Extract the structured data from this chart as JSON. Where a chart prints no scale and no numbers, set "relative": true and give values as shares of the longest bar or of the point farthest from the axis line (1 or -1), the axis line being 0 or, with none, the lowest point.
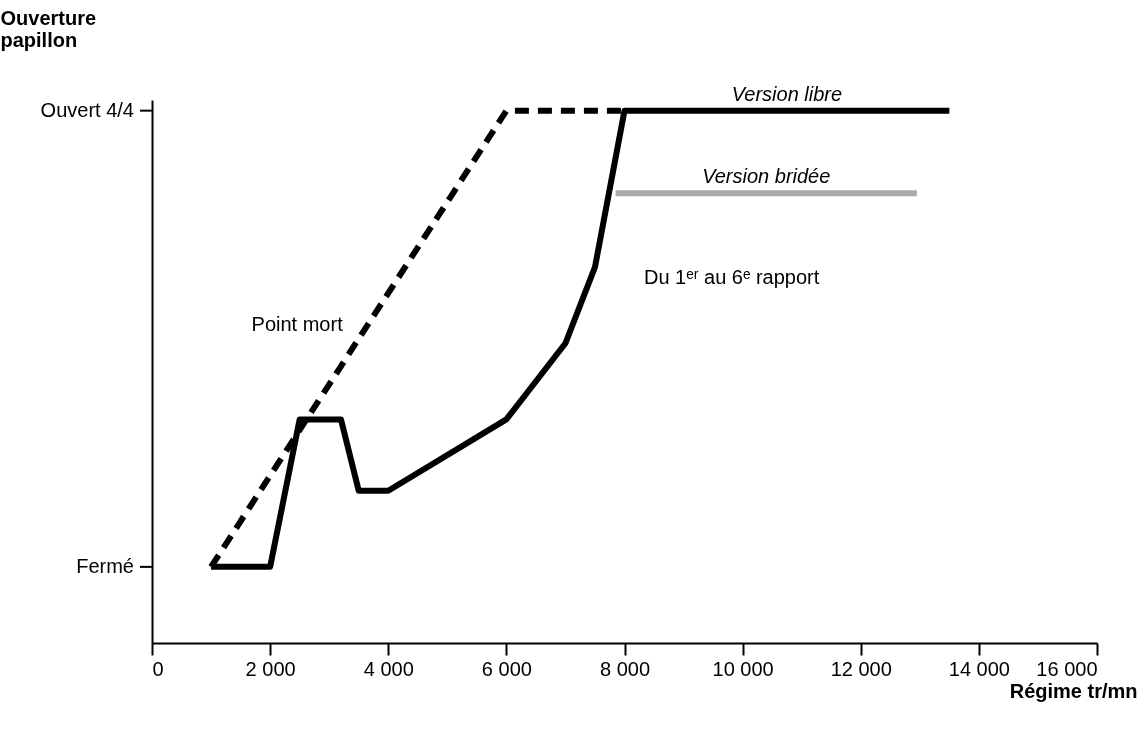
{
  "chart_data": {
    "type": "line",
    "xlabel": "Régime tr/mn",
    "ylabel": "Ouverture papillon",
    "relative": true,
    "xlim": [
      0,
      16000
    ],
    "xticks": [
      0,
      {
        "value": 2000,
        "label": "2 000"
      },
      {
        "value": 4000,
        "label": "4 000"
      },
      {
        "value": 6000,
        "label": "6 000"
      },
      {
        "value": 8000,
        "label": "8 000"
      },
      {
        "value": 10000,
        "label": "10 000"
      },
      {
        "value": 12000,
        "label": "12 000"
      },
      {
        "value": 14000,
        "label": "14 000"
      },
      {
        "value": 16000,
        "label": "16 000"
      }
    ],
    "grid": false,
    "legend": false,
    "marker": "none",
    "series": [
      {
        "name": "Point mort",
        "color": "#000000",
        "line_style": "dashed",
        "x": [
          1000,
          6000,
          8000
        ],
        "values": [
          0.143,
          1,
          1
        ]
      },
      {
        "name": "Version libre",
        "color": "#000000",
        "line_style": "solid",
        "x": [
          1000,
          2000,
          2500,
          3200,
          3500,
          4000,
          6000,
          7000,
          7500,
          8000,
          13500
        ],
        "values": [
          0.143,
          0.143,
          0.42,
          0.42,
          0.286,
          0.286,
          0.42,
          0.563,
          0.706,
          1,
          1
        ]
      },
      {
        "name": "Version bridée",
        "color": "#aaaaaa",
        "line_style": "solid",
        "x": [
          7850,
          12950
        ],
        "values": [
          0.845,
          0.845
        ]
      }
    ],
    "annotations": [
      "Fermé",
      "Ouvert 4/4",
      "Du 1ᵉʳ au 6ᵉ rapport"
    ]
  }
}
